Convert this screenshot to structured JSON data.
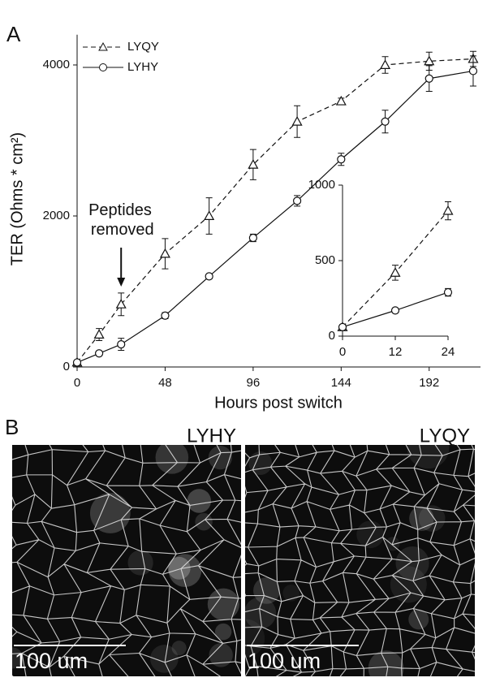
{
  "panel_a": {
    "label": "A"
  },
  "panel_b": {
    "label": "B",
    "images": [
      {
        "caption": "LYHY",
        "scale_bar": "100 um"
      },
      {
        "caption": "LYQY",
        "scale_bar": "100 um"
      }
    ]
  },
  "chart_data": [
    {
      "type": "line",
      "x_label": "Hours post switch",
      "y_label": "TER (Ohms * cm²)",
      "annotation": "Peptides removed",
      "annotation_x": 24,
      "x": [
        0,
        12,
        24,
        48,
        72,
        96,
        120,
        144,
        168,
        192,
        216
      ],
      "xlim": [
        0,
        220
      ],
      "xticks": [
        0,
        48,
        96,
        144,
        192
      ],
      "ylim": [
        0,
        4400
      ],
      "yticks": [
        0,
        2000,
        4000
      ],
      "legend": "top-left",
      "series": [
        {
          "name": "LYQY",
          "color": "#111111",
          "dashed": true,
          "marker": "triangle",
          "values": [
            60,
            430,
            830,
            1500,
            2000,
            2680,
            3250,
            3520,
            4000,
            4050,
            4080
          ],
          "errors": [
            20,
            80,
            150,
            200,
            240,
            200,
            210,
            40,
            110,
            120,
            100
          ]
        },
        {
          "name": "LYHY",
          "color": "#111111",
          "dashed": false,
          "marker": "circle",
          "values": [
            60,
            180,
            300,
            680,
            1200,
            1710,
            2200,
            2750,
            3250,
            3820,
            3920
          ],
          "errors": [
            20,
            30,
            80,
            40,
            30,
            50,
            70,
            80,
            150,
            170,
            200
          ]
        }
      ]
    },
    {
      "type": "line",
      "x": [
        0,
        12,
        24
      ],
      "xlim": [
        0,
        24
      ],
      "xticks": [
        0,
        12,
        24
      ],
      "ylim": [
        0,
        1000
      ],
      "yticks": [
        0,
        500,
        1000
      ],
      "series": [
        {
          "color": "#111111",
          "dashed": true,
          "marker": "triangle",
          "values": [
            60,
            420,
            830
          ],
          "errors": [
            10,
            50,
            60
          ]
        },
        {
          "color": "#111111",
          "dashed": false,
          "marker": "circle",
          "values": [
            60,
            170,
            290
          ],
          "errors": [
            10,
            15,
            25
          ]
        }
      ]
    }
  ]
}
